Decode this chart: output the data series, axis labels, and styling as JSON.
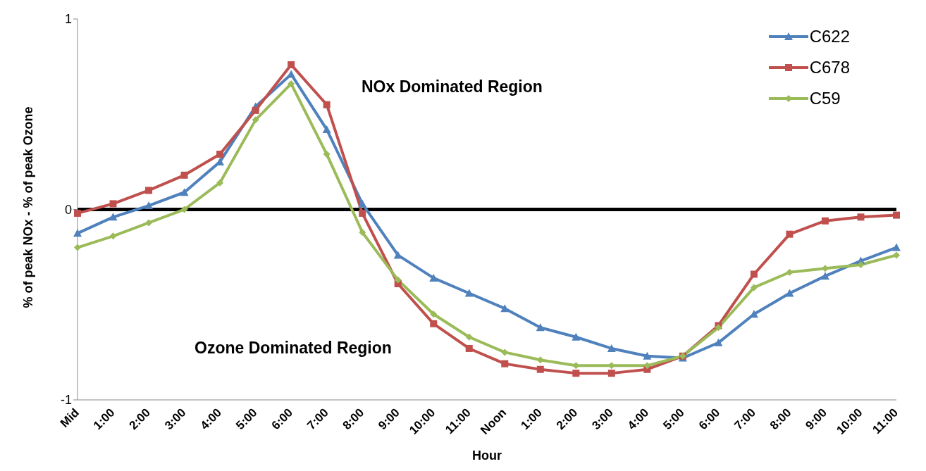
{
  "chart_data": {
    "type": "line",
    "xlabel": "Hour",
    "ylabel": "% of peak NOx - % of peak Ozone",
    "categories": [
      "Mid",
      "1:00",
      "2:00",
      "3:00",
      "4:00",
      "5:00",
      "6:00",
      "7:00",
      "8:00",
      "9:00",
      "10:00",
      "11:00",
      "Noon",
      "1:00",
      "2:00",
      "3:00",
      "4:00",
      "5:00",
      "6:00",
      "7:00",
      "8:00",
      "9:00",
      "10:00",
      "11:00"
    ],
    "series": [
      {
        "name": "C622",
        "color": "#4f81bd",
        "marker": "triangle",
        "values": [
          -0.125,
          -0.04,
          0.02,
          0.09,
          0.25,
          0.54,
          0.71,
          0.42,
          0.03,
          -0.24,
          -0.36,
          -0.44,
          -0.52,
          -0.62,
          -0.67,
          -0.73,
          -0.77,
          -0.78,
          -0.7,
          -0.55,
          -0.44,
          -0.35,
          -0.27,
          -0.2
        ]
      },
      {
        "name": "C678",
        "color": "#c0504d",
        "marker": "square",
        "values": [
          -0.02,
          0.03,
          0.1,
          0.18,
          0.29,
          0.52,
          0.76,
          0.55,
          -0.02,
          -0.39,
          -0.6,
          -0.73,
          -0.81,
          -0.84,
          -0.86,
          -0.86,
          -0.84,
          -0.77,
          -0.61,
          -0.34,
          -0.13,
          -0.06,
          -0.04,
          -0.03
        ]
      },
      {
        "name": "C59",
        "color": "#9bbb59",
        "marker": "diamond",
        "values": [
          -0.2,
          -0.14,
          -0.07,
          0.0,
          0.14,
          0.47,
          0.66,
          0.29,
          -0.12,
          -0.37,
          -0.55,
          -0.67,
          -0.75,
          -0.79,
          -0.82,
          -0.82,
          -0.82,
          -0.77,
          -0.62,
          -0.41,
          -0.33,
          -0.31,
          -0.29,
          -0.24
        ]
      }
    ],
    "ylim": [
      -1,
      1
    ],
    "yticks": [
      -1,
      0,
      1
    ],
    "ref_lines": [
      {
        "axis": "y",
        "value": 0,
        "color": "#000000"
      }
    ],
    "annotations": [
      "NOx Dominated Region",
      "Ozone Dominated Region"
    ],
    "grid": false,
    "legend": "top right",
    "line_style": "solid"
  }
}
